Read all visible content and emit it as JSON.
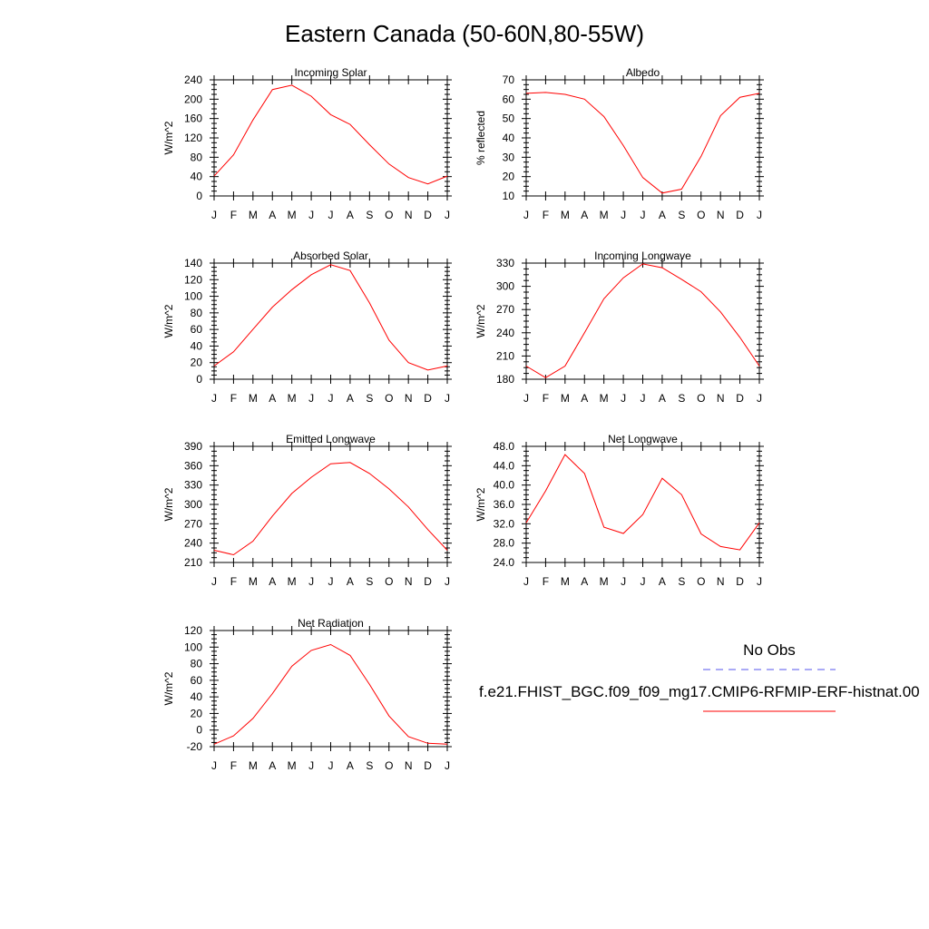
{
  "title": "Eastern Canada (50-60N,80-55W)",
  "legend": {
    "obs_label": "No Obs",
    "obs_color": "#5555ee",
    "model_label": "f.e21.FHIST_BGC.f09_f09_mg17.CMIP6-RFMIP-ERF-histnat.00",
    "model_color": "#ff0000"
  },
  "chart_data": [
    {
      "type": "line",
      "title": "Incoming Solar",
      "ylabel": "W/m^2",
      "xlabel": "",
      "categories": [
        "J",
        "F",
        "M",
        "A",
        "M",
        "J",
        "J",
        "A",
        "S",
        "O",
        "N",
        "D",
        "J"
      ],
      "ylim": [
        0,
        240
      ],
      "yticks": [
        "0",
        "40",
        "80",
        "120",
        "160",
        "200",
        "240"
      ],
      "series": [
        {
          "values": [
            41,
            85,
            157,
            220,
            229,
            206,
            168,
            148,
            106,
            66,
            38,
            25,
            41
          ]
        }
      ]
    },
    {
      "type": "line",
      "title": "Albedo",
      "ylabel": "% reflected",
      "xlabel": "",
      "categories": [
        "J",
        "F",
        "M",
        "A",
        "M",
        "J",
        "J",
        "A",
        "S",
        "O",
        "N",
        "D",
        "J"
      ],
      "ylim": [
        10,
        70
      ],
      "yticks": [
        "10",
        "20",
        "30",
        "40",
        "50",
        "60",
        "70"
      ],
      "series": [
        {
          "values": [
            63,
            63.5,
            62.5,
            60,
            51,
            36,
            19.5,
            11.5,
            13.5,
            30.5,
            51.5,
            61,
            63
          ]
        }
      ]
    },
    {
      "type": "line",
      "title": "Absorbed Solar",
      "ylabel": "W/m^2",
      "xlabel": "",
      "categories": [
        "J",
        "F",
        "M",
        "A",
        "M",
        "J",
        "J",
        "A",
        "S",
        "O",
        "N",
        "D",
        "J"
      ],
      "ylim": [
        0,
        140
      ],
      "yticks": [
        "0",
        "20",
        "40",
        "60",
        "80",
        "100",
        "120",
        "140"
      ],
      "series": [
        {
          "values": [
            16,
            33,
            60,
            87,
            108,
            126,
            138,
            131,
            92,
            47,
            20,
            11,
            16
          ]
        }
      ]
    },
    {
      "type": "line",
      "title": "Incoming Longwave",
      "ylabel": "W/m^2",
      "xlabel": "",
      "categories": [
        "J",
        "F",
        "M",
        "A",
        "M",
        "J",
        "J",
        "A",
        "S",
        "O",
        "N",
        "D",
        "J"
      ],
      "ylim": [
        180,
        330
      ],
      "yticks": [
        "180",
        "210",
        "240",
        "270",
        "300",
        "330"
      ],
      "series": [
        {
          "values": [
            197,
            182,
            197,
            240,
            284,
            311,
            329,
            324,
            309,
            293,
            267,
            234,
            197
          ]
        }
      ]
    },
    {
      "type": "line",
      "title": "Emitted Longwave",
      "ylabel": "W/m^2",
      "xlabel": "",
      "categories": [
        "J",
        "F",
        "M",
        "A",
        "M",
        "J",
        "J",
        "A",
        "S",
        "O",
        "N",
        "D",
        "J"
      ],
      "ylim": [
        210,
        390
      ],
      "yticks": [
        "210",
        "240",
        "270",
        "300",
        "330",
        "360",
        "390"
      ],
      "series": [
        {
          "values": [
            229,
            222,
            243,
            282,
            317,
            342,
            363,
            365,
            348,
            324,
            296,
            261,
            229
          ]
        }
      ]
    },
    {
      "type": "line",
      "title": "Net Longwave",
      "ylabel": "W/m^2",
      "xlabel": "",
      "categories": [
        "J",
        "F",
        "M",
        "A",
        "M",
        "J",
        "J",
        "A",
        "S",
        "O",
        "N",
        "D",
        "J"
      ],
      "ylim": [
        24,
        48
      ],
      "yticks": [
        "24.0",
        "28.0",
        "32.0",
        "36.0",
        "40.0",
        "44.0",
        "48.0"
      ],
      "series": [
        {
          "values": [
            32.2,
            38.8,
            46.3,
            42.4,
            31.3,
            30.0,
            33.9,
            41.4,
            38.0,
            29.9,
            27.3,
            26.6,
            32.2
          ]
        }
      ]
    },
    {
      "type": "line",
      "title": "Net Radiation",
      "ylabel": "W/m^2",
      "xlabel": "",
      "categories": [
        "J",
        "F",
        "M",
        "A",
        "M",
        "J",
        "J",
        "A",
        "S",
        "O",
        "N",
        "D",
        "J"
      ],
      "ylim": [
        -20,
        120
      ],
      "yticks": [
        "-20",
        "0",
        "20",
        "40",
        "60",
        "80",
        "100",
        "120"
      ],
      "series": [
        {
          "values": [
            -17,
            -7,
            14,
            44,
            77,
            96,
            103,
            90,
            55,
            17,
            -8,
            -16,
            -17
          ]
        }
      ]
    }
  ]
}
